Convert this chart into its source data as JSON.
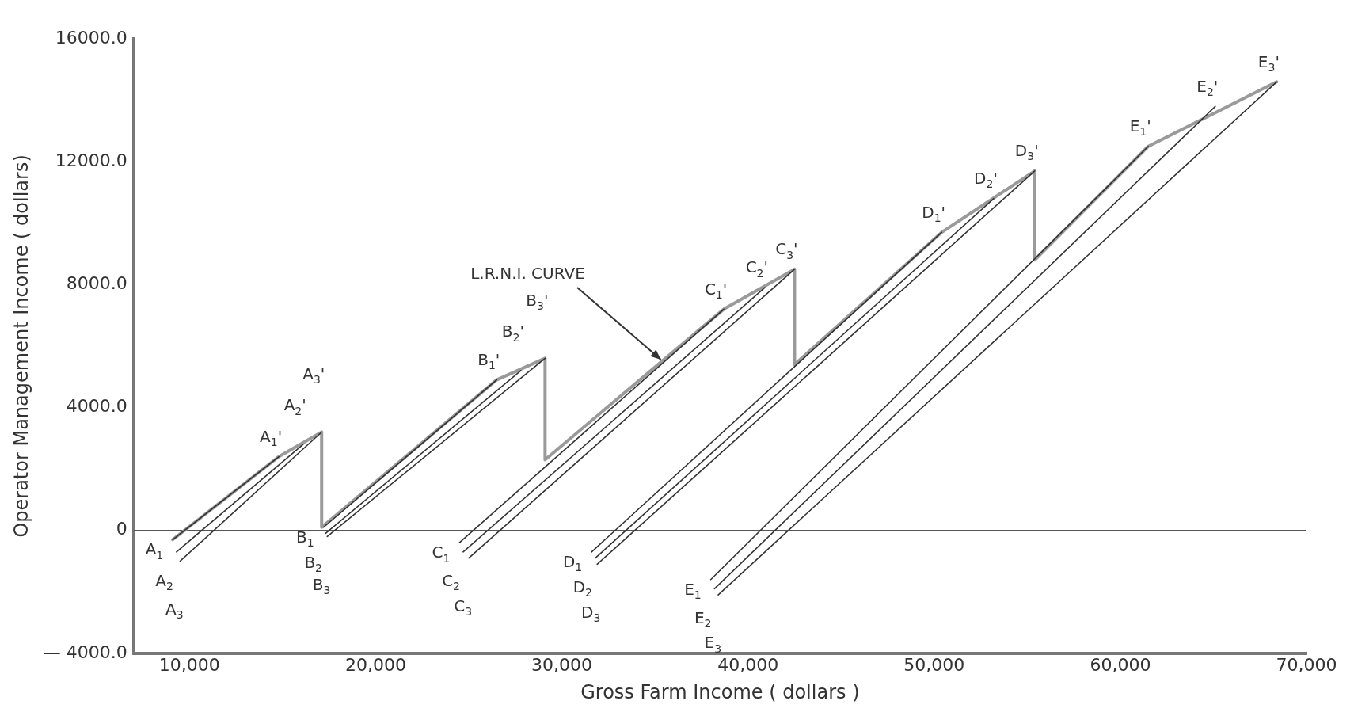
{
  "chart_data": {
    "type": "line",
    "xlabel": "Gross Farm Income ( dollars )",
    "ylabel": "Operator Management Income ( dollars)",
    "xlim": [
      7000,
      70000
    ],
    "xticks": [
      {
        "value": 10000,
        "label": "10,000"
      },
      {
        "value": 20000,
        "label": "20,000"
      },
      {
        "value": 30000,
        "label": "30,000"
      },
      {
        "value": 40000,
        "label": "40,000"
      },
      {
        "value": 50000,
        "label": "50,000"
      },
      {
        "value": 60000,
        "label": "60,000"
      },
      {
        "value": 70000,
        "label": "70,000"
      }
    ],
    "ylim": [
      -4000,
      16000
    ],
    "yticks": [
      {
        "value": -4000,
        "label": "— 4000.0"
      },
      0,
      {
        "value": 4000,
        "label": "4000.0"
      },
      {
        "value": 8000,
        "label": "8000.0"
      },
      {
        "value": 12000,
        "label": "12000.0"
      },
      {
        "value": 16000,
        "label": "16000.0"
      }
    ],
    "grid": false,
    "legend": false,
    "marker": "none",
    "line_style": "solid",
    "ref_lines": [
      {
        "axis": "y",
        "value": 0,
        "color": "#555555"
      }
    ],
    "series": [
      {
        "color": "#9a9a9a",
        "x": [
          9100,
          14800,
          17100,
          17100,
          26500,
          29100,
          29100,
          38700,
          42500,
          42500,
          50400,
          55400,
          55400,
          61500,
          68400
        ],
        "values": [
          -300,
          2400,
          3200,
          100,
          4900,
          5600,
          2300,
          7200,
          8500,
          5400,
          9700,
          11700,
          8800,
          12500,
          14600
        ]
      },
      {
        "color": "#333333",
        "x": [
          9100,
          14800
        ],
        "values": [
          -300,
          2400
        ]
      },
      {
        "color": "#333333",
        "x": [
          9300,
          16100
        ],
        "values": [
          -700,
          2800
        ]
      },
      {
        "color": "#333333",
        "x": [
          9500,
          17100
        ],
        "values": [
          -1000,
          3200
        ]
      },
      {
        "color": "#333333",
        "x": [
          17200,
          26500
        ],
        "values": [
          100,
          4900
        ]
      },
      {
        "color": "#333333",
        "x": [
          17300,
          27800
        ],
        "values": [
          -100,
          5200
        ]
      },
      {
        "color": "#333333",
        "x": [
          17400,
          29100
        ],
        "values": [
          -200,
          5600
        ]
      },
      {
        "color": "#333333",
        "x": [
          24500,
          38700
        ],
        "values": [
          -400,
          7200
        ]
      },
      {
        "color": "#333333",
        "x": [
          24700,
          40900
        ],
        "values": [
          -700,
          7900
        ]
      },
      {
        "color": "#333333",
        "x": [
          25000,
          42500
        ],
        "values": [
          -900,
          8500
        ]
      },
      {
        "color": "#333333",
        "x": [
          31600,
          50400
        ],
        "values": [
          -700,
          9700
        ]
      },
      {
        "color": "#333333",
        "x": [
          31800,
          53200
        ],
        "values": [
          -900,
          10800
        ]
      },
      {
        "color": "#333333",
        "x": [
          31900,
          55400
        ],
        "values": [
          -1100,
          11700
        ]
      },
      {
        "color": "#333333",
        "x": [
          38000,
          61500
        ],
        "values": [
          -1600,
          12500
        ]
      },
      {
        "color": "#333333",
        "x": [
          38200,
          65100
        ],
        "values": [
          -1900,
          13800
        ]
      },
      {
        "color": "#333333",
        "x": [
          38400,
          68400
        ],
        "values": [
          -2100,
          14600
        ]
      }
    ],
    "annotations": [
      {
        "text": "A$_{1}$",
        "x": 9100,
        "y": -300
      },
      {
        "text": "A$_{2}$",
        "x": 9300,
        "y": -700
      },
      {
        "text": "A$_{3}$",
        "x": 9500,
        "y": -1000
      },
      {
        "text": "A$_{1}$'",
        "x": 14800,
        "y": 2400
      },
      {
        "text": "A$_{2}$'",
        "x": 16100,
        "y": 2800
      },
      {
        "text": "A$_{3}$'",
        "x": 17100,
        "y": 3200
      },
      {
        "text": "B$_{1}$",
        "x": 17200,
        "y": 100
      },
      {
        "text": "B$_{2}$",
        "x": 17300,
        "y": -100
      },
      {
        "text": "B$_{3}$",
        "x": 17400,
        "y": -200
      },
      {
        "text": "B$_{1}$'",
        "x": 26500,
        "y": 4900
      },
      {
        "text": "B$_{2}$'",
        "x": 27800,
        "y": 5200
      },
      {
        "text": "B$_{3}$'",
        "x": 29100,
        "y": 5600
      },
      {
        "text": "C$_{1}$",
        "x": 24500,
        "y": -400
      },
      {
        "text": "C$_{2}$",
        "x": 24700,
        "y": -700
      },
      {
        "text": "C$_{3}$",
        "x": 25000,
        "y": -900
      },
      {
        "text": "C$_{1}$'",
        "x": 38700,
        "y": 7200
      },
      {
        "text": "C$_{2}$'",
        "x": 40900,
        "y": 7900
      },
      {
        "text": "C$_{3}$'",
        "x": 42500,
        "y": 8500
      },
      {
        "text": "D$_{1}$",
        "x": 31600,
        "y": -700
      },
      {
        "text": "D$_{2}$",
        "x": 31800,
        "y": -900
      },
      {
        "text": "D$_{3}$",
        "x": 31900,
        "y": -1100
      },
      {
        "text": "D$_{1}$'",
        "x": 50400,
        "y": 9700
      },
      {
        "text": "D$_{2}$'",
        "x": 53200,
        "y": 10800
      },
      {
        "text": "D$_{3}$'",
        "x": 55400,
        "y": 11700
      },
      {
        "text": "E$_{1}$",
        "x": 38000,
        "y": -1600
      },
      {
        "text": "E$_{2}$",
        "x": 38200,
        "y": -1900
      },
      {
        "text": "E$_{3}$",
        "x": 38400,
        "y": -2100
      },
      {
        "text": "E$_{1}$'",
        "x": 61500,
        "y": 12500
      },
      {
        "text": "E$_{2}$'",
        "x": 65100,
        "y": 13800
      },
      {
        "text": "E$_{3}$'",
        "x": 68400,
        "y": 14600
      },
      {
        "text": "L.R.N.I. CURVE",
        "x": 35400,
        "y": 5516
      }
    ]
  }
}
